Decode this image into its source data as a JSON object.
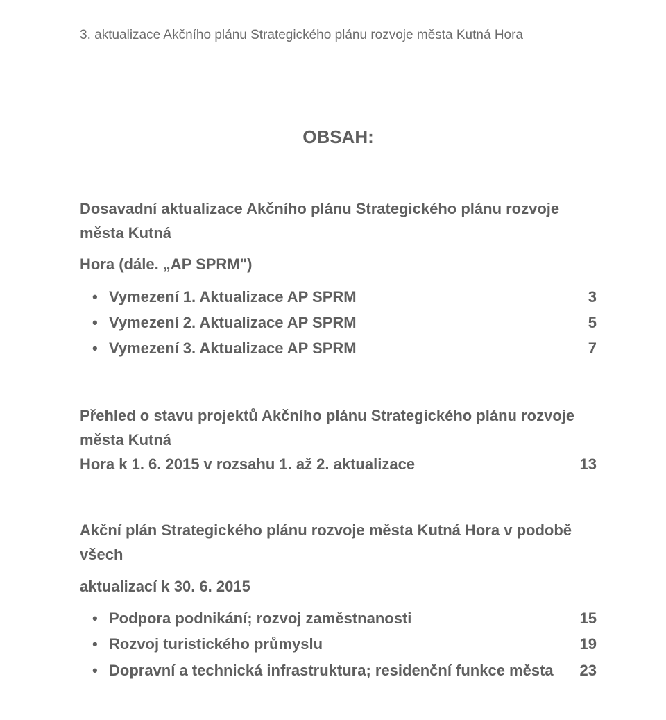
{
  "colors": {
    "text": "#5f5f5f",
    "muted": "#6b6b6b",
    "background": "#ffffff"
  },
  "typography": {
    "body_font": "Arial",
    "header_font": "Arial Narrow",
    "body_size_pt": 16,
    "header_size_pt": 14,
    "heading_size_pt": 20
  },
  "header": "3. aktualizace Akčního plánu Strategického plánu rozvoje města Kutná Hora",
  "title": "OBSAH:",
  "section1": {
    "lead": "Dosavadní aktualizace Akčního plánu Strategického plánu rozvoje města Kutná",
    "lead2": "Hora (dále. „AP SPRM\")",
    "items": [
      {
        "label": "Vymezení 1. Aktualizace AP SPRM",
        "page": "3"
      },
      {
        "label": "Vymezení 2. Aktualizace AP SPRM",
        "page": "5"
      },
      {
        "label": "Vymezení 3. Aktualizace AP SPRM",
        "page": "7"
      }
    ]
  },
  "section2": {
    "line1": "Přehled o stavu projektů Akčního plánu Strategického plánu rozvoje města Kutná",
    "line2_left": "Hora k 1. 6. 2015 v rozsahu 1. až 2. aktualizace",
    "line2_page": "13"
  },
  "section3": {
    "line1": "Akční plán Strategického plánu rozvoje města Kutná Hora v podobě všech",
    "line2": "aktualizací k 30. 6. 2015",
    "items": [
      {
        "label": "Podpora podnikání; rozvoj zaměstnanosti",
        "page": "15"
      },
      {
        "label": "Rozvoj turistického průmyslu",
        "page": "19"
      },
      {
        "label": "Dopravní a technická infrastruktura; residenční funkce města",
        "page": "23"
      }
    ]
  }
}
